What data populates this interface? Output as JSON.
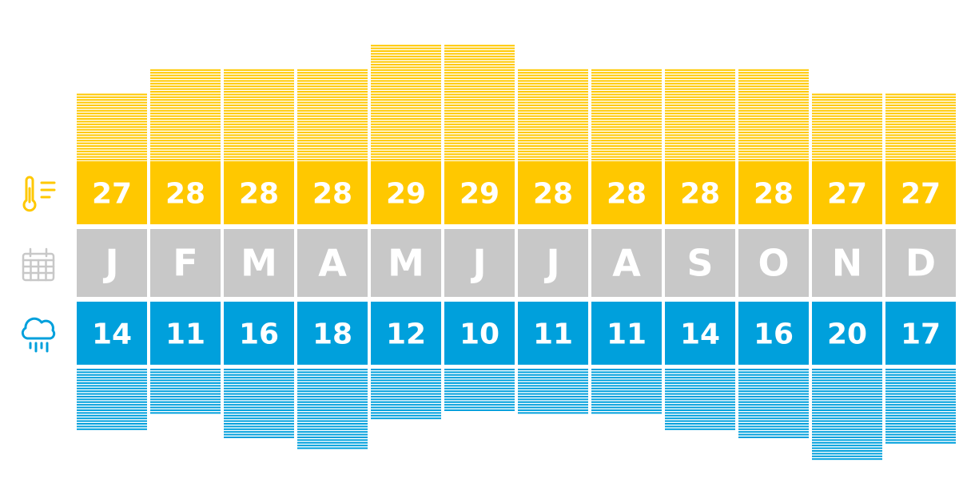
{
  "chart_data": {
    "type": "bar",
    "categories": [
      "J",
      "F",
      "M",
      "A",
      "M",
      "J",
      "J",
      "A",
      "S",
      "O",
      "N",
      "D"
    ],
    "series": [
      {
        "values": [
          27,
          28,
          28,
          28,
          29,
          29,
          28,
          28,
          28,
          28,
          27,
          27
        ]
      },
      {
        "values": [
          14,
          11,
          16,
          18,
          12,
          10,
          11,
          11,
          14,
          16,
          20,
          17
        ]
      }
    ],
    "title": "",
    "xlabel": "",
    "ylabel": "",
    "grid": false,
    "legend": "none"
  },
  "icons": {
    "temperature": "thermometer-icon",
    "month": "calendar-icon",
    "precipitation": "rain-cloud-icon"
  },
  "colors": {
    "temperature": "#FFC800",
    "month": "#C8C8C8",
    "precipitation": "#00A0DC",
    "month_text": "#ffffff",
    "value_text": "#ffffff"
  }
}
